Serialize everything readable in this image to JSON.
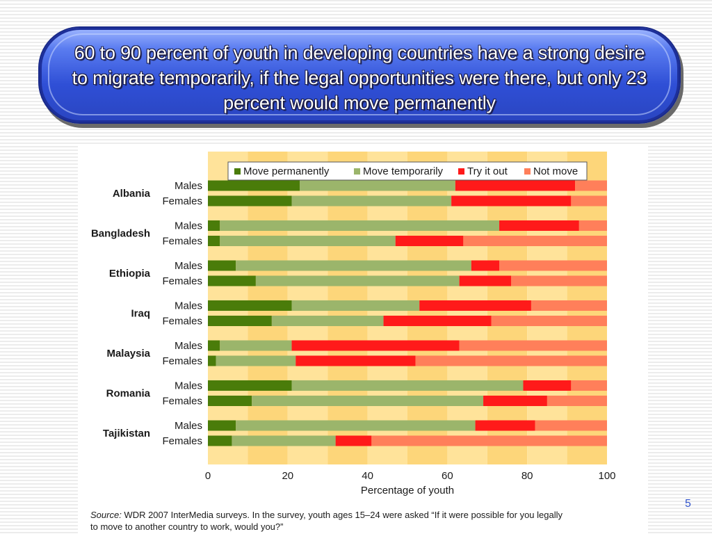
{
  "slide": {
    "title": "60 to 90 percent of youth in developing countries have a strong desire to migrate temporarily, if the legal opportunities were there, but only 23 percent would move permanently",
    "page_number": "5"
  },
  "chart_data": {
    "type": "bar",
    "orientation": "horizontal",
    "stacked": true,
    "xlabel": "Percentage of youth",
    "xlim": [
      0,
      100
    ],
    "xticks": [
      0,
      20,
      40,
      60,
      80,
      100
    ],
    "legend": {
      "placement": "top",
      "entries": [
        {
          "name": "Move permanently",
          "color": "#4a7c0a"
        },
        {
          "name": "Move temporarily",
          "color": "#9bb56b"
        },
        {
          "name": "Try it out",
          "color": "#ff1a1a"
        },
        {
          "name": "Not move",
          "color": "#ff7f5a"
        }
      ]
    },
    "colors": {
      "band_light": "#ffe39a",
      "band_dark": "#fdd67a"
    },
    "countries": [
      {
        "name": "Albania",
        "rows": [
          {
            "label": "Males",
            "values": [
              23,
              39,
              30,
              8
            ]
          },
          {
            "label": "Females",
            "values": [
              21,
              40,
              30,
              9
            ]
          }
        ]
      },
      {
        "name": "Bangladesh",
        "rows": [
          {
            "label": "Males",
            "values": [
              3,
              70,
              20,
              7
            ]
          },
          {
            "label": "Females",
            "values": [
              3,
              44,
              17,
              36
            ]
          }
        ]
      },
      {
        "name": "Ethiopia",
        "rows": [
          {
            "label": "Males",
            "values": [
              7,
              59,
              7,
              27
            ]
          },
          {
            "label": "Females",
            "values": [
              12,
              51,
              13,
              24
            ]
          }
        ]
      },
      {
        "name": "Iraq",
        "rows": [
          {
            "label": "Males",
            "values": [
              21,
              32,
              28,
              19
            ]
          },
          {
            "label": "Females",
            "values": [
              16,
              28,
              27,
              29
            ]
          }
        ]
      },
      {
        "name": "Malaysia",
        "rows": [
          {
            "label": "Males",
            "values": [
              3,
              18,
              42,
              37
            ]
          },
          {
            "label": "Females",
            "values": [
              2,
              20,
              30,
              48
            ]
          }
        ]
      },
      {
        "name": "Romania",
        "rows": [
          {
            "label": "Males",
            "values": [
              21,
              58,
              12,
              9
            ]
          },
          {
            "label": "Females",
            "values": [
              11,
              58,
              16,
              15
            ]
          }
        ]
      },
      {
        "name": "Tajikistan",
        "rows": [
          {
            "label": "Males",
            "values": [
              7,
              60,
              15,
              18
            ]
          },
          {
            "label": "Females",
            "values": [
              6,
              26,
              9,
              59
            ]
          }
        ]
      }
    ],
    "source": {
      "label": "Source:",
      "text": "WDR 2007 InterMedia surveys. In the survey, youth ages 15–24 were asked “If it were possible for you legally to move to another country to work, would you?”"
    }
  }
}
